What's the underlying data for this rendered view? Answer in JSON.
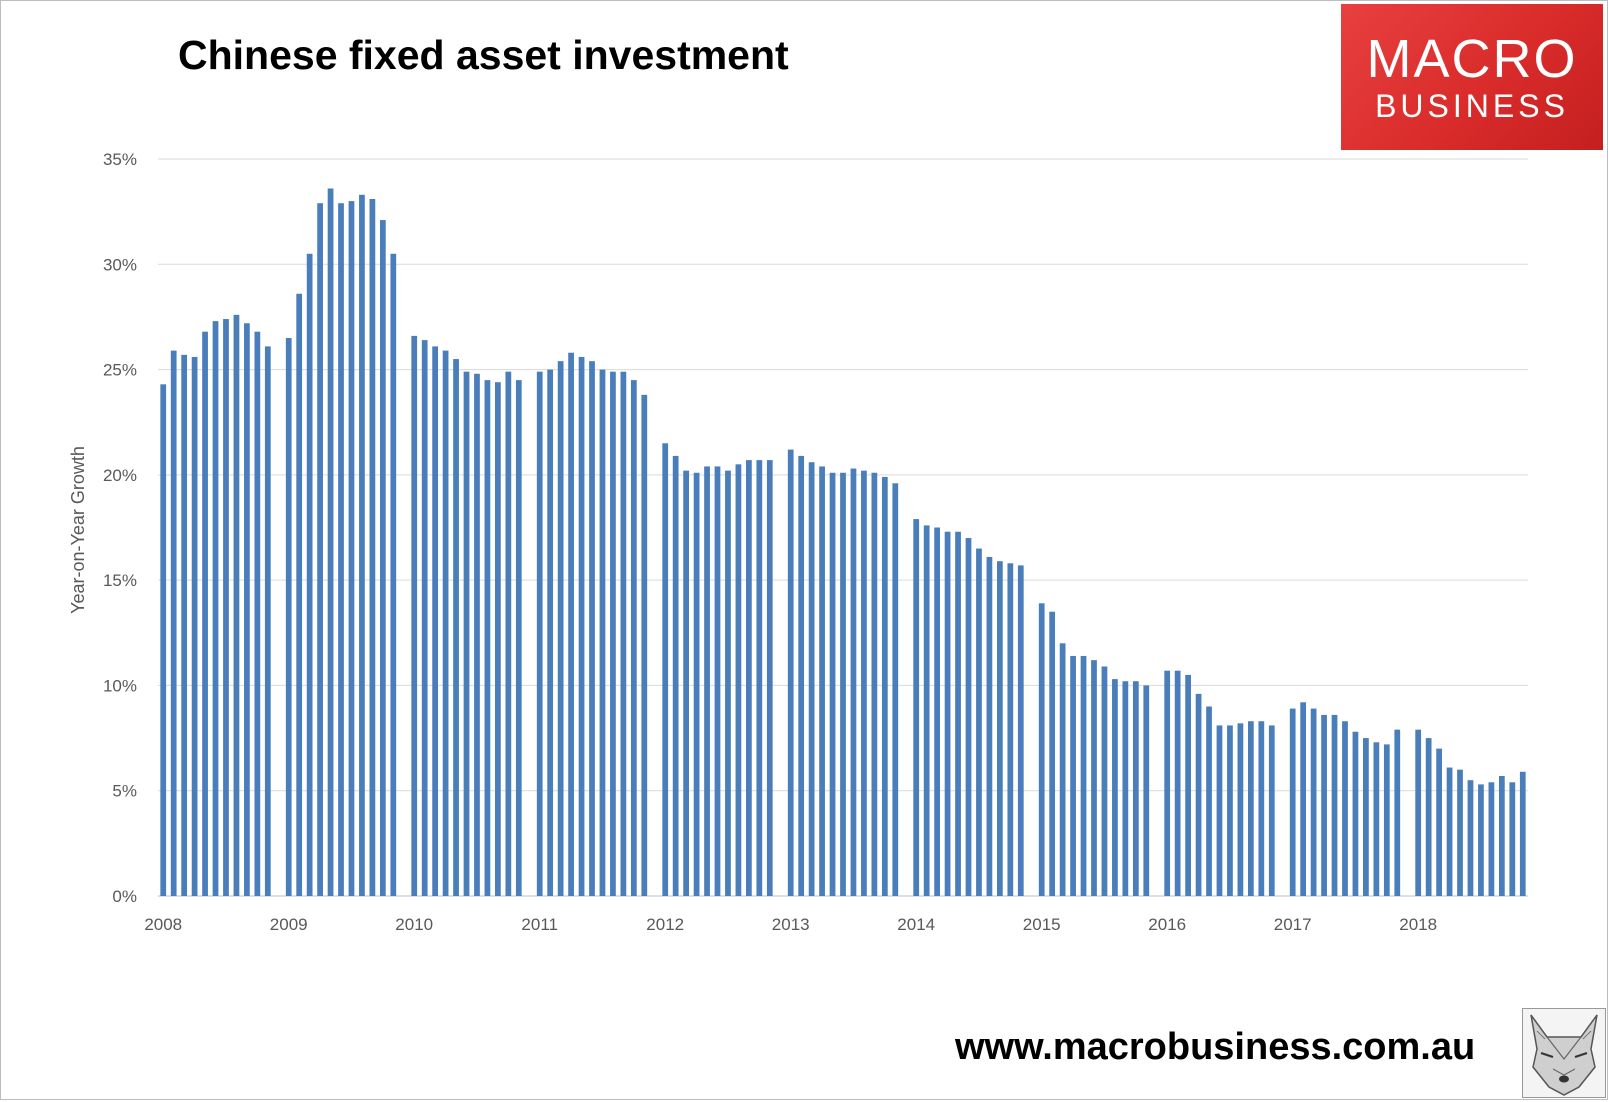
{
  "title": "Chinese fixed asset investment",
  "logo": {
    "line1": "MACRO",
    "line2": "BUSINESS"
  },
  "website": "www.macrobusiness.com.au",
  "colors": {
    "bar": "#4a7ebb",
    "grid": "#d9d9d9",
    "axis_text": "#595959",
    "logo": "#d92c2b"
  },
  "icons": {
    "mascot": "wolf-icon"
  },
  "chart_data": {
    "type": "bar",
    "title": "Chinese fixed asset investment",
    "xlabel": "",
    "ylabel": "Year-on-Year Growth",
    "ylim": [
      0,
      35
    ],
    "yticks": [
      "0%",
      "5%",
      "10%",
      "15%",
      "20%",
      "25%",
      "30%",
      "35%"
    ],
    "xticks": [
      "2008",
      "2009",
      "2010",
      "2011",
      "2012",
      "2013",
      "2014",
      "2015",
      "2016",
      "2017",
      "2018"
    ],
    "grid": true,
    "legend": "none",
    "unit": "percent",
    "series": [
      {
        "values": [
          24.3,
          25.9,
          25.7,
          25.6,
          26.8,
          27.3,
          27.4,
          27.6,
          27.2,
          26.8,
          26.1,
          null,
          26.5,
          28.6,
          30.5,
          32.9,
          33.6,
          32.9,
          33.0,
          33.3,
          33.1,
          32.1,
          30.5,
          null,
          26.6,
          26.4,
          26.1,
          25.9,
          25.5,
          24.9,
          24.8,
          24.5,
          24.4,
          24.9,
          24.5,
          null,
          24.9,
          25.0,
          25.4,
          25.8,
          25.6,
          25.4,
          25.0,
          24.9,
          24.9,
          24.5,
          23.8,
          null,
          21.5,
          20.9,
          20.2,
          20.1,
          20.4,
          20.4,
          20.2,
          20.5,
          20.7,
          20.7,
          20.7,
          null,
          21.2,
          20.9,
          20.6,
          20.4,
          20.1,
          20.1,
          20.3,
          20.2,
          20.1,
          19.9,
          19.6,
          null,
          17.9,
          17.6,
          17.5,
          17.3,
          17.3,
          17.0,
          16.5,
          16.1,
          15.9,
          15.8,
          15.7,
          null,
          13.9,
          13.5,
          12.0,
          11.4,
          11.4,
          11.2,
          10.9,
          10.3,
          10.2,
          10.2,
          10.0,
          null,
          10.7,
          10.7,
          10.5,
          9.6,
          9.0,
          8.1,
          8.1,
          8.2,
          8.3,
          8.3,
          8.1,
          null,
          8.9,
          9.2,
          8.9,
          8.6,
          8.6,
          8.3,
          7.8,
          7.5,
          7.3,
          7.2,
          7.9,
          null,
          7.9,
          7.5,
          7.0,
          6.1,
          6.0,
          5.5,
          5.3,
          5.4,
          5.7,
          5.4,
          5.9
        ]
      }
    ]
  }
}
